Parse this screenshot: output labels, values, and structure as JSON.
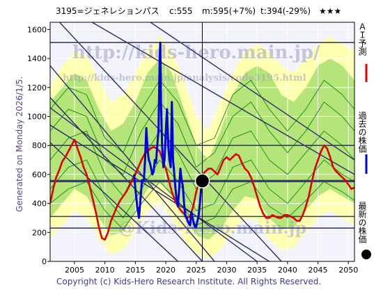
{
  "title": {
    "code_name": "3195=ジェネレションパス",
    "current": "c:555",
    "mid": "m:595(+7%)",
    "target": "t:394(-29%)",
    "stars": "★★★"
  },
  "side_label": "Generated on Monday 2026/1/5.",
  "footer": "Copyright (c) Kids-Hero Research Institute. All Rights Reserved.",
  "watermarks": {
    "main_url": "http://kids-hero.main.jp/",
    "page_url": "http://kids-hero.main.jp/analysis/code3195.html",
    "site": "@Kids-Hero.main.jp"
  },
  "legend": [
    {
      "label": "ＡＩ予測",
      "color": "#e00000",
      "marker": "line"
    },
    {
      "label": "過去の株価",
      "color": "#0000e0",
      "marker": "line"
    },
    {
      "label": "最新の株価",
      "color": "#000000",
      "marker": "dot"
    }
  ],
  "colors": {
    "background": "#f3f3fb",
    "band_yellow": "#ffffb0",
    "band_green": "#a8e070",
    "ensemble_green": "#1f8f1f",
    "channel_line": "#2a2a6a",
    "level_line": "#3a3a7a",
    "ai_prediction": "#e00000",
    "past_price": "#0000e0",
    "latest_marker": "#000000"
  },
  "chart_data": {
    "type": "line",
    "xlim": [
      2001,
      2051
    ],
    "ylim": [
      0,
      1650
    ],
    "x_ticks": [
      2005,
      2010,
      2015,
      2020,
      2025,
      2030,
      2035,
      2040,
      2045,
      2050
    ],
    "y_ticks": [
      0,
      200,
      400,
      600,
      800,
      1000,
      1200,
      1400,
      1600
    ],
    "grid": true,
    "legend_position": "right-vertical",
    "horizontal_levels": [
      230,
      310,
      550,
      800,
      1510
    ],
    "highlight_level": 555,
    "channels": [
      {
        "x": [
          2001,
          2026
        ],
        "y": [
          1130,
          0
        ]
      },
      {
        "x": [
          2001,
          2022
        ],
        "y": [
          820,
          0
        ]
      },
      {
        "x": [
          2001,
          2028
        ],
        "y": [
          1350,
          0
        ]
      },
      {
        "x": [
          2001,
          2039
        ],
        "y": [
          1720,
          0
        ]
      },
      {
        "x": [
          2005,
          2051
        ],
        "y": [
          1720,
          600
        ]
      },
      {
        "x": [
          2015,
          2051
        ],
        "y": [
          1720,
          700
        ]
      },
      {
        "x": [
          2001,
          2037
        ],
        "y": [
          940,
          0
        ]
      },
      {
        "x": [
          2001,
          2035
        ],
        "y": [
          1060,
          0
        ]
      }
    ],
    "band_upper": {
      "x": [
        2001,
        2003,
        2005,
        2007,
        2009,
        2011,
        2013,
        2015,
        2017,
        2019,
        2021,
        2023,
        2025,
        2027,
        2029,
        2031,
        2033,
        2035,
        2037,
        2039,
        2041,
        2043,
        2045,
        2047,
        2049,
        2051
      ],
      "y": [
        1200,
        1350,
        1450,
        1420,
        1250,
        1100,
        1150,
        1300,
        1450,
        1550,
        1450,
        1250,
        1000,
        900,
        1100,
        1300,
        1450,
        1500,
        1450,
        1350,
        1300,
        1400,
        1500,
        1550,
        1500,
        1450
      ]
    },
    "band_lower": {
      "x": [
        2001,
        2003,
        2005,
        2007,
        2009,
        2011,
        2013,
        2015,
        2017,
        2019,
        2021,
        2023,
        2025,
        2027,
        2029,
        2031,
        2033,
        2035,
        2037,
        2039,
        2041,
        2043,
        2045,
        2047,
        2049,
        2051
      ],
      "y": [
        150,
        250,
        350,
        300,
        150,
        50,
        80,
        200,
        350,
        400,
        300,
        150,
        50,
        20,
        80,
        200,
        300,
        280,
        150,
        80,
        100,
        200,
        300,
        350,
        300,
        250
      ]
    },
    "green_upper": {
      "x": [
        2001,
        2003,
        2005,
        2007,
        2009,
        2011,
        2013,
        2015,
        2017,
        2019,
        2021,
        2023,
        2025,
        2027,
        2029,
        2031,
        2033,
        2035,
        2037,
        2039,
        2041,
        2043,
        2045,
        2047,
        2049,
        2051
      ],
      "y": [
        1100,
        1200,
        1300,
        1250,
        1050,
        900,
        950,
        1100,
        1300,
        1400,
        1300,
        1050,
        800,
        700,
        900,
        1150,
        1300,
        1350,
        1300,
        1150,
        1100,
        1200,
        1350,
        1400,
        1350,
        1250
      ]
    },
    "green_lower": {
      "x": [
        2001,
        2003,
        2005,
        2007,
        2009,
        2011,
        2013,
        2015,
        2017,
        2019,
        2021,
        2023,
        2025,
        2027,
        2029,
        2031,
        2033,
        2035,
        2037,
        2039,
        2041,
        2043,
        2045,
        2047,
        2049,
        2051
      ],
      "y": [
        300,
        400,
        500,
        450,
        300,
        180,
        200,
        350,
        500,
        550,
        450,
        300,
        180,
        150,
        220,
        350,
        450,
        430,
        300,
        220,
        230,
        350,
        450,
        500,
        450,
        400
      ]
    },
    "ensemble_lines": [
      {
        "x": [
          2001,
          2004,
          2007,
          2010,
          2013,
          2016,
          2019,
          2022,
          2025,
          2028,
          2031,
          2034,
          2037,
          2040,
          2043,
          2046,
          2049,
          2051
        ],
        "y": [
          700,
          850,
          900,
          600,
          450,
          700,
          900,
          750,
          500,
          600,
          850,
          900,
          700,
          600,
          750,
          900,
          800,
          700
        ]
      },
      {
        "x": [
          2001,
          2004,
          2007,
          2010,
          2013,
          2016,
          2019,
          2022,
          2025,
          2028,
          2031,
          2034,
          2037,
          2040,
          2043,
          2046,
          2049,
          2051
        ],
        "y": [
          900,
          1050,
          1000,
          700,
          600,
          900,
          1100,
          950,
          650,
          750,
          1000,
          1100,
          900,
          750,
          900,
          1100,
          1000,
          900
        ]
      },
      {
        "x": [
          2001,
          2004,
          2007,
          2010,
          2013,
          2016,
          2019,
          2022,
          2025,
          2028,
          2031,
          2034,
          2037,
          2040,
          2043,
          2046,
          2049,
          2051
        ],
        "y": [
          500,
          650,
          700,
          450,
          300,
          500,
          700,
          550,
          350,
          400,
          650,
          700,
          500,
          400,
          550,
          700,
          600,
          550
        ]
      },
      {
        "x": [
          2001,
          2004,
          2007,
          2010,
          2013,
          2016,
          2019,
          2022,
          2025,
          2028,
          2031,
          2034,
          2037,
          2040,
          2043,
          2046,
          2049,
          2051
        ],
        "y": [
          1050,
          1200,
          1150,
          850,
          750,
          1050,
          1250,
          1100,
          800,
          850,
          1150,
          1250,
          1050,
          900,
          1050,
          1250,
          1150,
          1050
        ]
      },
      {
        "x": [
          2001,
          2004,
          2007,
          2010,
          2013,
          2016,
          2019,
          2022,
          2025,
          2028,
          2031,
          2034,
          2037,
          2040,
          2043,
          2046,
          2049,
          2051
        ],
        "y": [
          400,
          500,
          550,
          350,
          220,
          400,
          550,
          420,
          250,
          300,
          500,
          550,
          380,
          300,
          420,
          550,
          480,
          420
        ]
      }
    ],
    "series": [
      {
        "name": "ＡＩ予測",
        "x": [
          2001.0,
          2001.5,
          2002.0,
          2002.5,
          2003.0,
          2003.5,
          2004.0,
          2004.5,
          2005.0,
          2005.5,
          2006.0,
          2006.5,
          2007.0,
          2007.5,
          2008.0,
          2008.5,
          2009.0,
          2009.5,
          2010.0,
          2010.5,
          2011.0,
          2011.5,
          2012.0,
          2012.5,
          2013.0,
          2013.5,
          2014.0,
          2014.5,
          2015.0,
          2015.5,
          2016.0,
          2016.5,
          2017.0,
          2017.5,
          2018.0,
          2018.5,
          2019.0,
          2019.5,
          2020.0,
          2020.5,
          2021.0,
          2021.5,
          2022.0,
          2022.5,
          2023.0,
          2023.5,
          2024.0,
          2024.5,
          2025.0,
          2025.5,
          2026.0,
          2026.5,
          2027.0,
          2027.5,
          2028.0,
          2028.5,
          2029.0,
          2029.5,
          2030.0,
          2030.5,
          2031.0,
          2031.5,
          2032.0,
          2032.5,
          2033.0,
          2033.5,
          2034.0,
          2034.5,
          2035.0,
          2035.5,
          2036.0,
          2036.5,
          2037.0,
          2037.5,
          2038.0,
          2038.5,
          2039.0,
          2039.5,
          2040.0,
          2040.5,
          2041.0,
          2041.5,
          2042.0,
          2042.5,
          2043.0,
          2043.5,
          2044.0,
          2044.5,
          2045.0,
          2045.5,
          2046.0,
          2046.5,
          2047.0,
          2047.5,
          2048.0,
          2048.5,
          2049.0,
          2049.5,
          2050.0,
          2050.5,
          2051.0
        ],
        "y": [
          400,
          500,
          580,
          630,
          690,
          720,
          760,
          800,
          840,
          780,
          720,
          650,
          600,
          520,
          430,
          340,
          240,
          160,
          150,
          200,
          280,
          330,
          380,
          420,
          450,
          480,
          520,
          560,
          600,
          650,
          700,
          740,
          760,
          780,
          790,
          780,
          760,
          700,
          640,
          560,
          480,
          420,
          380,
          350,
          330,
          300,
          310,
          380,
          480,
          560,
          600,
          620,
          640,
          640,
          620,
          600,
          650,
          700,
          720,
          700,
          720,
          740,
          730,
          680,
          640,
          620,
          580,
          520,
          450,
          380,
          330,
          300,
          300,
          320,
          310,
          300,
          300,
          320,
          320,
          310,
          300,
          280,
          280,
          320,
          380,
          450,
          550,
          640,
          700,
          760,
          800,
          780,
          720,
          650,
          620,
          600,
          580,
          560,
          530,
          500,
          510
        ]
      },
      {
        "name": "過去の株価",
        "x": [
          2014.8,
          2015.0,
          2015.3,
          2015.6,
          2015.9,
          2016.1,
          2016.4,
          2016.6,
          2016.8,
          2017.0,
          2017.2,
          2017.4,
          2017.6,
          2017.8,
          2018.0,
          2018.2,
          2018.4,
          2018.6,
          2018.8,
          2019.0,
          2019.1,
          2019.2,
          2019.4,
          2019.6,
          2019.8,
          2020.0,
          2020.2,
          2020.4,
          2020.6,
          2020.8,
          2021.0,
          2021.2,
          2021.4,
          2021.6,
          2021.8,
          2022.0,
          2022.2,
          2022.4,
          2022.6,
          2022.8,
          2023.0,
          2023.2,
          2023.4,
          2023.6,
          2023.8,
          2024.0,
          2024.2,
          2024.4,
          2024.6,
          2024.8,
          2025.0,
          2025.2,
          2025.4,
          2025.6,
          2025.8,
          2026.0
        ],
        "y": [
          600,
          500,
          380,
          300,
          460,
          560,
          560,
          700,
          920,
          780,
          700,
          680,
          640,
          600,
          620,
          700,
          680,
          800,
          900,
          1400,
          1510,
          1100,
          800,
          650,
          700,
          900,
          1050,
          800,
          700,
          650,
          1100,
          700,
          600,
          500,
          420,
          380,
          500,
          640,
          560,
          520,
          400,
          320,
          300,
          280,
          260,
          250,
          340,
          300,
          260,
          240,
          240,
          280,
          320,
          400,
          500,
          555
        ]
      }
    ],
    "latest": {
      "x": 2026.0,
      "y": 555
    }
  }
}
